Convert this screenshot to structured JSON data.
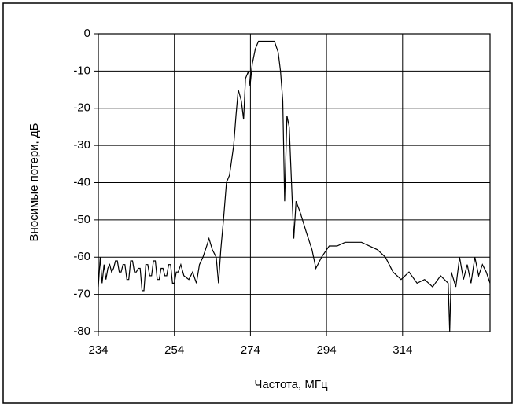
{
  "chart_data": {
    "type": "line",
    "x_label": "Частота, МГц",
    "y_label": "Вносимые потери, дБ",
    "xlim": [
      234,
      337
    ],
    "xticks": [
      234,
      254,
      274,
      294,
      314
    ],
    "ylim": [
      -80,
      0
    ],
    "yticks": [
      0,
      -10,
      -20,
      -30,
      -40,
      -50,
      -60,
      -70,
      -80
    ],
    "grid": true,
    "series": [
      {
        "color": "#000000",
        "x": [
          234,
          234.5,
          235,
          235.5,
          236,
          236.5,
          237,
          237.5,
          238,
          238.5,
          239,
          239.5,
          240,
          240.5,
          241,
          241.5,
          242,
          242.5,
          243,
          243.5,
          244,
          244.5,
          245,
          245.5,
          246,
          246.5,
          247,
          247.5,
          248,
          248.5,
          249,
          249.5,
          250,
          250.5,
          251,
          251.5,
          252,
          252.5,
          253,
          253.5,
          254,
          254.5,
          255,
          255.7,
          256.5,
          257.8,
          258.8,
          259.8,
          260.6,
          261.5,
          262.5,
          263.1,
          264,
          265,
          265.6,
          266.2,
          266.9,
          267.7,
          268.5,
          269.6,
          270.2,
          270.8,
          271.6,
          272.2,
          272.7,
          273.5,
          273.9,
          274.5,
          275.3,
          276.1,
          278.3,
          280.3,
          281.3,
          281.9,
          282.5,
          283,
          283.6,
          284.2,
          284.8,
          285.4,
          286,
          287.1,
          288.6,
          290.2,
          291.2,
          292.7,
          294.7,
          296.8,
          298.9,
          303.2,
          307.4,
          309.5,
          311.5,
          313.6,
          315.7,
          317.8,
          319.8,
          321.9,
          324,
          326,
          326.4,
          326.8,
          328,
          329,
          330,
          331,
          332,
          333,
          334,
          335,
          336,
          337
        ],
        "values": [
          -68,
          -60,
          -67,
          -62,
          -66,
          -63,
          -62,
          -64,
          -63,
          -61,
          -61,
          -64,
          -64,
          -62,
          -62,
          -66,
          -66,
          -61,
          -61,
          -64,
          -64,
          -63,
          -63,
          -69,
          -69,
          -62,
          -62,
          -65,
          -65,
          -61,
          -61,
          -66,
          -66,
          -63,
          -63,
          -65,
          -65,
          -62,
          -62,
          -67,
          -67,
          -64,
          -64,
          -62,
          -65,
          -66,
          -64,
          -67,
          -62,
          -60,
          -57,
          -55,
          -58,
          -60,
          -67,
          -58,
          -50,
          -40,
          -38,
          -30,
          -22,
          -15,
          -18,
          -23,
          -12,
          -10,
          -14,
          -8,
          -4,
          -2,
          -2,
          -2,
          -5,
          -10,
          -18,
          -45,
          -22,
          -25,
          -40,
          -55,
          -45,
          -48,
          -53,
          -58,
          -63,
          -60,
          -57,
          -57,
          -56,
          -56,
          -58,
          -60,
          -64,
          -66,
          -64,
          -67,
          -66,
          -68,
          -65,
          -67,
          -80,
          -64,
          -68,
          -60,
          -66,
          -62,
          -67,
          -60,
          -65,
          -62,
          -64,
          -67
        ]
      }
    ]
  }
}
